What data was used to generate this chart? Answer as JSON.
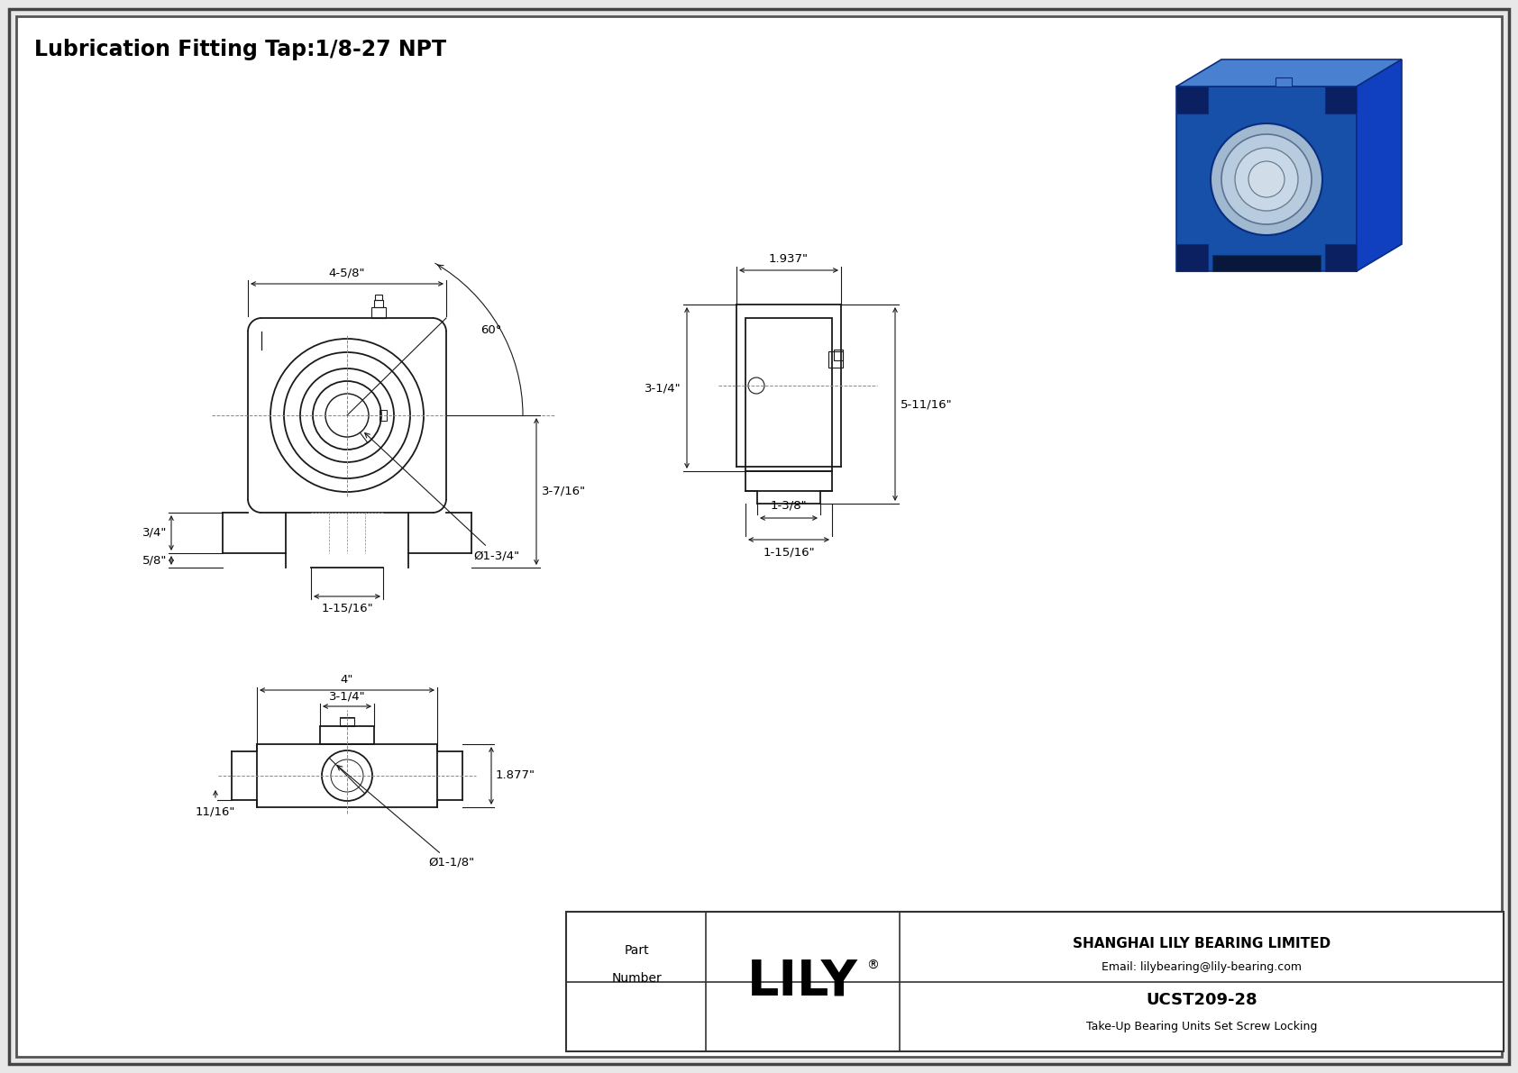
{
  "title": "Lubrication Fitting Tap:1/8-27 NPT",
  "background_color": "#e8e8e8",
  "line_color": "#1a1a1a",
  "part_number": "UCST209-28",
  "part_desc": "Take-Up Bearing Units Set Screw Locking",
  "company": "SHANGHAI LILY BEARING LIMITED",
  "email": "Email: lilybearing@lily-bearing.com",
  "lily_text": "LILY",
  "dims": {
    "front_width": "4-5/8\"",
    "front_height_slot": "3-7/16\"",
    "front_side_height": "3/4\"",
    "front_slot_width": "1-15/16\"",
    "front_bore_dia": "Ø1-3/4\"",
    "front_angle": "60°",
    "side_width": "1.937\"",
    "side_height": "3-1/4\"",
    "side_total_height": "5-11/16\"",
    "side_bottom1": "1-3/8\"",
    "side_bottom2": "1-15/16\"",
    "bottom_total": "4\"",
    "bottom_inner": "3-1/4\"",
    "bottom_height": "1.877\"",
    "bottom_side_h": "11/16\"",
    "bottom_bore": "Ø1-1/8\"",
    "bottom_left_h": "5/8\""
  }
}
